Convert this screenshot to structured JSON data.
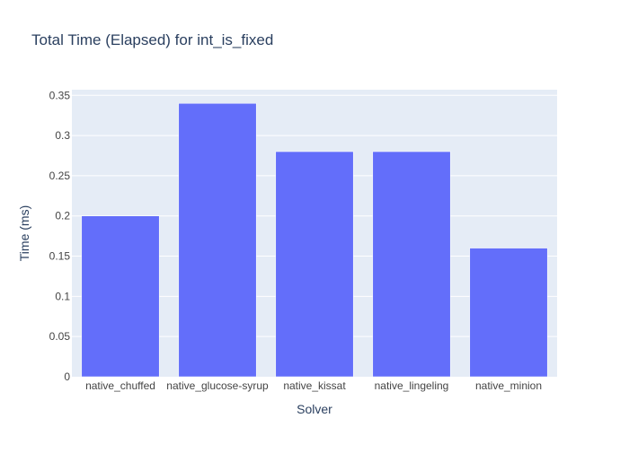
{
  "chart_data": {
    "type": "bar",
    "title": "Total Time (Elapsed) for int_is_fixed",
    "xlabel": "Solver",
    "ylabel": "Time (ms)",
    "categories": [
      "native_chuffed",
      "native_glucose-syrup",
      "native_kissat",
      "native_lingeling",
      "native_minion"
    ],
    "values": [
      0.2,
      0.34,
      0.28,
      0.28,
      0.16
    ],
    "ylim": [
      0,
      0.357
    ],
    "yticks": [
      0,
      0.05,
      0.1,
      0.15,
      0.2,
      0.25,
      0.3,
      0.35
    ],
    "ytick_labels": [
      "0",
      "0.05",
      "0.1",
      "0.15",
      "0.2",
      "0.25",
      "0.3",
      "0.35"
    ],
    "grid": true,
    "colors": {
      "bar": "#636efa",
      "plot_bg": "#e5ecf6",
      "grid": "#ffffff",
      "text": "#2a3f5f",
      "tick_text": "#444444"
    }
  }
}
